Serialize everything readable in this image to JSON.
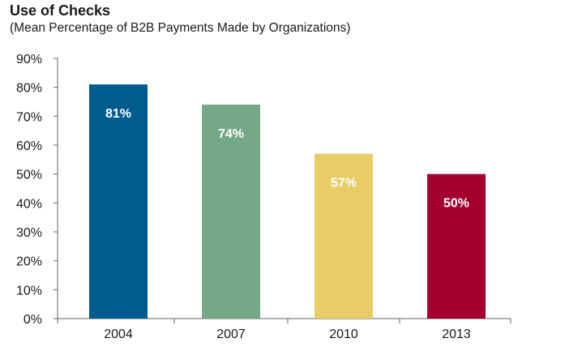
{
  "chart_data": {
    "type": "bar",
    "title": "Use of Checks",
    "subtitle": "(Mean Percentage of B2B Payments Made by Organizations)",
    "categories": [
      "2004",
      "2007",
      "2010",
      "2013"
    ],
    "values": [
      81,
      74,
      57,
      50
    ],
    "data_labels": [
      "81%",
      "74%",
      "57%",
      "50%"
    ],
    "bar_colors": [
      "#005b8f",
      "#74a887",
      "#e8cc66",
      "#a3002f"
    ],
    "ylim": [
      0,
      90
    ],
    "yticks": [
      0,
      10,
      20,
      30,
      40,
      50,
      60,
      70,
      80,
      90
    ],
    "ytick_labels": [
      "0%",
      "10%",
      "20%",
      "30%",
      "40%",
      "50%",
      "60%",
      "70%",
      "80%",
      "90%"
    ],
    "xlabel": "",
    "ylabel": "",
    "grid": false,
    "legend": "none"
  }
}
